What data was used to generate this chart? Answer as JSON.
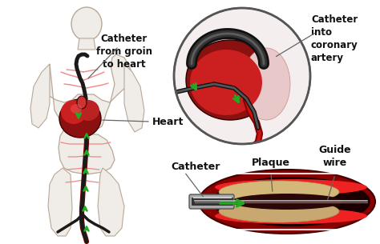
{
  "bg_color": "#ffffff",
  "labels": {
    "catheter_from_groin": "Catheter\nfrom groin\nto heart",
    "heart": "Heart",
    "catheter": "Catheter",
    "catheter_into_coronary": "Catheter\ninto\ncoronary\nartery",
    "plaque": "Plaque",
    "guide_wire": "Guide\nwire"
  },
  "body_color": "#f0ece8",
  "body_outline": "#b8a898",
  "heart_dark": "#8b1010",
  "heart_mid": "#cc2020",
  "heart_light": "#dd4444",
  "artery_dark": "#8b0000",
  "artery_mid": "#cc3333",
  "artery_light": "#ee8888",
  "catheter_dark": "#222222",
  "catheter_light": "#888888",
  "arrow_color": "#22aa22",
  "circle_bg": "#f5eeee",
  "circle_border": "#555555",
  "vessel_red_dark": "#880000",
  "vessel_red_mid": "#cc1111",
  "vessel_red_bright": "#ee2222",
  "plaque_color": "#d4b87a",
  "plaque_dark": "#b89050",
  "wire_color": "#aaaaaa",
  "label_color": "#111111",
  "line_color": "#666666"
}
